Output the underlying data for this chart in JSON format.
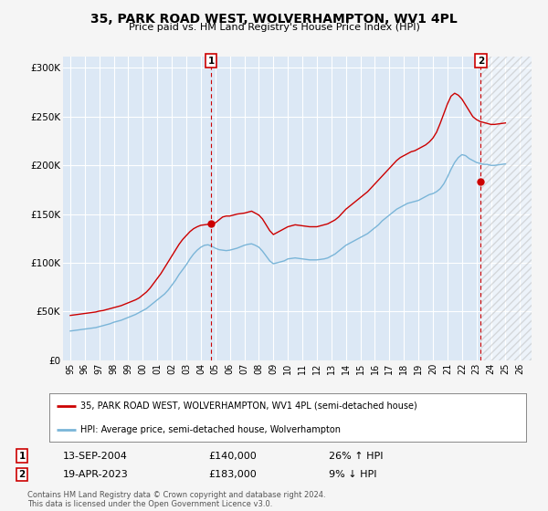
{
  "title": "35, PARK ROAD WEST, WOLVERHAMPTON, WV1 4PL",
  "subtitle": "Price paid vs. HM Land Registry's House Price Index (HPI)",
  "ylabel_ticks": [
    "£0",
    "£50K",
    "£100K",
    "£150K",
    "£200K",
    "£250K",
    "£300K"
  ],
  "ytick_values": [
    0,
    50000,
    100000,
    150000,
    200000,
    250000,
    300000
  ],
  "ylim": [
    0,
    312000
  ],
  "xlim_start": 1994.5,
  "xlim_end": 2026.8,
  "hpi_color": "#7ab5d8",
  "price_color": "#cc0000",
  "background_color": "#f5f5f5",
  "plot_bg_color": "#dce8f5",
  "grid_color": "#ffffff",
  "hatch_color": "#cccccc",
  "marker1_x": 2004.71,
  "marker1_y": 140000,
  "marker2_x": 2023.3,
  "marker2_y": 183000,
  "legend_price_label": "35, PARK ROAD WEST, WOLVERHAMPTON, WV1 4PL (semi-detached house)",
  "legend_hpi_label": "HPI: Average price, semi-detached house, Wolverhampton",
  "table_row1": [
    "1",
    "13-SEP-2004",
    "£140,000",
    "26% ↑ HPI"
  ],
  "table_row2": [
    "2",
    "19-APR-2023",
    "£183,000",
    "9% ↓ HPI"
  ],
  "footer": "Contains HM Land Registry data © Crown copyright and database right 2024.\nThis data is licensed under the Open Government Licence v3.0.",
  "hpi_data_x": [
    1995.0,
    1995.25,
    1995.5,
    1995.75,
    1996.0,
    1996.25,
    1996.5,
    1996.75,
    1997.0,
    1997.25,
    1997.5,
    1997.75,
    1998.0,
    1998.25,
    1998.5,
    1998.75,
    1999.0,
    1999.25,
    1999.5,
    1999.75,
    2000.0,
    2000.25,
    2000.5,
    2000.75,
    2001.0,
    2001.25,
    2001.5,
    2001.75,
    2002.0,
    2002.25,
    2002.5,
    2002.75,
    2003.0,
    2003.25,
    2003.5,
    2003.75,
    2004.0,
    2004.25,
    2004.5,
    2004.75,
    2005.0,
    2005.25,
    2005.5,
    2005.75,
    2006.0,
    2006.25,
    2006.5,
    2006.75,
    2007.0,
    2007.25,
    2007.5,
    2007.75,
    2008.0,
    2008.25,
    2008.5,
    2008.75,
    2009.0,
    2009.25,
    2009.5,
    2009.75,
    2010.0,
    2010.25,
    2010.5,
    2010.75,
    2011.0,
    2011.25,
    2011.5,
    2011.75,
    2012.0,
    2012.25,
    2012.5,
    2012.75,
    2013.0,
    2013.25,
    2013.5,
    2013.75,
    2014.0,
    2014.25,
    2014.5,
    2014.75,
    2015.0,
    2015.25,
    2015.5,
    2015.75,
    2016.0,
    2016.25,
    2016.5,
    2016.75,
    2017.0,
    2017.25,
    2017.5,
    2017.75,
    2018.0,
    2018.25,
    2018.5,
    2018.75,
    2019.0,
    2019.25,
    2019.5,
    2019.75,
    2020.0,
    2020.25,
    2020.5,
    2020.75,
    2021.0,
    2021.25,
    2021.5,
    2021.75,
    2022.0,
    2022.25,
    2022.5,
    2022.75,
    2023.0,
    2023.25,
    2023.5,
    2023.75,
    2024.0,
    2024.25,
    2024.5,
    2024.75,
    2025.0
  ],
  "hpi_data_y": [
    30000,
    30500,
    31000,
    31500,
    32000,
    32500,
    33000,
    33500,
    34500,
    35500,
    36500,
    37500,
    39000,
    40000,
    41000,
    42500,
    44000,
    45500,
    47000,
    49000,
    51000,
    53000,
    56000,
    59000,
    62000,
    65000,
    68000,
    72000,
    77000,
    82000,
    88000,
    93000,
    98000,
    104000,
    109000,
    113000,
    116000,
    118000,
    118500,
    117000,
    115000,
    113500,
    113000,
    112500,
    113000,
    114000,
    115000,
    116500,
    118000,
    119000,
    119500,
    118000,
    116000,
    112000,
    107000,
    102000,
    99000,
    100000,
    101000,
    102000,
    104000,
    104500,
    105000,
    104500,
    104000,
    103500,
    103000,
    103000,
    103000,
    103500,
    104000,
    105000,
    107000,
    109000,
    112000,
    115000,
    118000,
    120000,
    122000,
    124000,
    126000,
    128000,
    130000,
    133000,
    136000,
    139000,
    143000,
    146000,
    149000,
    152000,
    155000,
    157000,
    159000,
    161000,
    162000,
    163000,
    164000,
    166000,
    168000,
    170000,
    171000,
    173000,
    176000,
    181000,
    188000,
    196000,
    203000,
    208000,
    211000,
    210000,
    207000,
    205000,
    203000,
    202000,
    201000,
    201000,
    200000,
    200000,
    200500,
    201000,
    201500
  ],
  "price_data_x": [
    1995.0,
    1995.25,
    1995.5,
    1995.75,
    1996.0,
    1996.25,
    1996.5,
    1996.75,
    1997.0,
    1997.25,
    1997.5,
    1997.75,
    1998.0,
    1998.25,
    1998.5,
    1998.75,
    1999.0,
    1999.25,
    1999.5,
    1999.75,
    2000.0,
    2000.25,
    2000.5,
    2000.75,
    2001.0,
    2001.25,
    2001.5,
    2001.75,
    2002.0,
    2002.25,
    2002.5,
    2002.75,
    2003.0,
    2003.25,
    2003.5,
    2003.75,
    2004.0,
    2004.25,
    2004.5,
    2004.75,
    2005.0,
    2005.25,
    2005.5,
    2005.75,
    2006.0,
    2006.25,
    2006.5,
    2006.75,
    2007.0,
    2007.25,
    2007.5,
    2007.75,
    2008.0,
    2008.25,
    2008.5,
    2008.75,
    2009.0,
    2009.25,
    2009.5,
    2009.75,
    2010.0,
    2010.25,
    2010.5,
    2010.75,
    2011.0,
    2011.25,
    2011.5,
    2011.75,
    2012.0,
    2012.25,
    2012.5,
    2012.75,
    2013.0,
    2013.25,
    2013.5,
    2013.75,
    2014.0,
    2014.25,
    2014.5,
    2014.75,
    2015.0,
    2015.25,
    2015.5,
    2015.75,
    2016.0,
    2016.25,
    2016.5,
    2016.75,
    2017.0,
    2017.25,
    2017.5,
    2017.75,
    2018.0,
    2018.25,
    2018.5,
    2018.75,
    2019.0,
    2019.25,
    2019.5,
    2019.75,
    2020.0,
    2020.25,
    2020.5,
    2020.75,
    2021.0,
    2021.25,
    2021.5,
    2021.75,
    2022.0,
    2022.25,
    2022.5,
    2022.75,
    2023.0,
    2023.25,
    2023.5,
    2023.75,
    2024.0,
    2024.25,
    2024.5,
    2024.75,
    2025.0
  ],
  "price_data_y": [
    46000,
    46500,
    47000,
    47500,
    48000,
    48500,
    49000,
    49500,
    50500,
    51000,
    52000,
    53000,
    54000,
    55000,
    56000,
    57500,
    59000,
    60500,
    62000,
    64000,
    67000,
    70000,
    74000,
    79000,
    84000,
    89000,
    95000,
    101000,
    107000,
    113000,
    119000,
    124000,
    128000,
    132000,
    135000,
    137000,
    138500,
    139000,
    139500,
    140000,
    141000,
    144000,
    147000,
    148000,
    148000,
    149000,
    150000,
    150500,
    151000,
    152000,
    153000,
    151000,
    149000,
    145000,
    139000,
    133000,
    129000,
    131000,
    133000,
    135000,
    137000,
    138000,
    139000,
    138500,
    138000,
    137500,
    137000,
    137000,
    137000,
    138000,
    139000,
    140000,
    142000,
    144000,
    147000,
    151000,
    155000,
    158000,
    161000,
    164000,
    167000,
    170000,
    173000,
    177000,
    181000,
    185000,
    189000,
    193000,
    197000,
    201000,
    205000,
    208000,
    210000,
    212000,
    214000,
    215000,
    217000,
    219000,
    221000,
    224000,
    228000,
    234000,
    243000,
    253000,
    263000,
    271000,
    274000,
    272000,
    268000,
    262000,
    256000,
    250000,
    247000,
    245000,
    244000,
    243000,
    242000,
    242000,
    242500,
    243000,
    243500
  ]
}
